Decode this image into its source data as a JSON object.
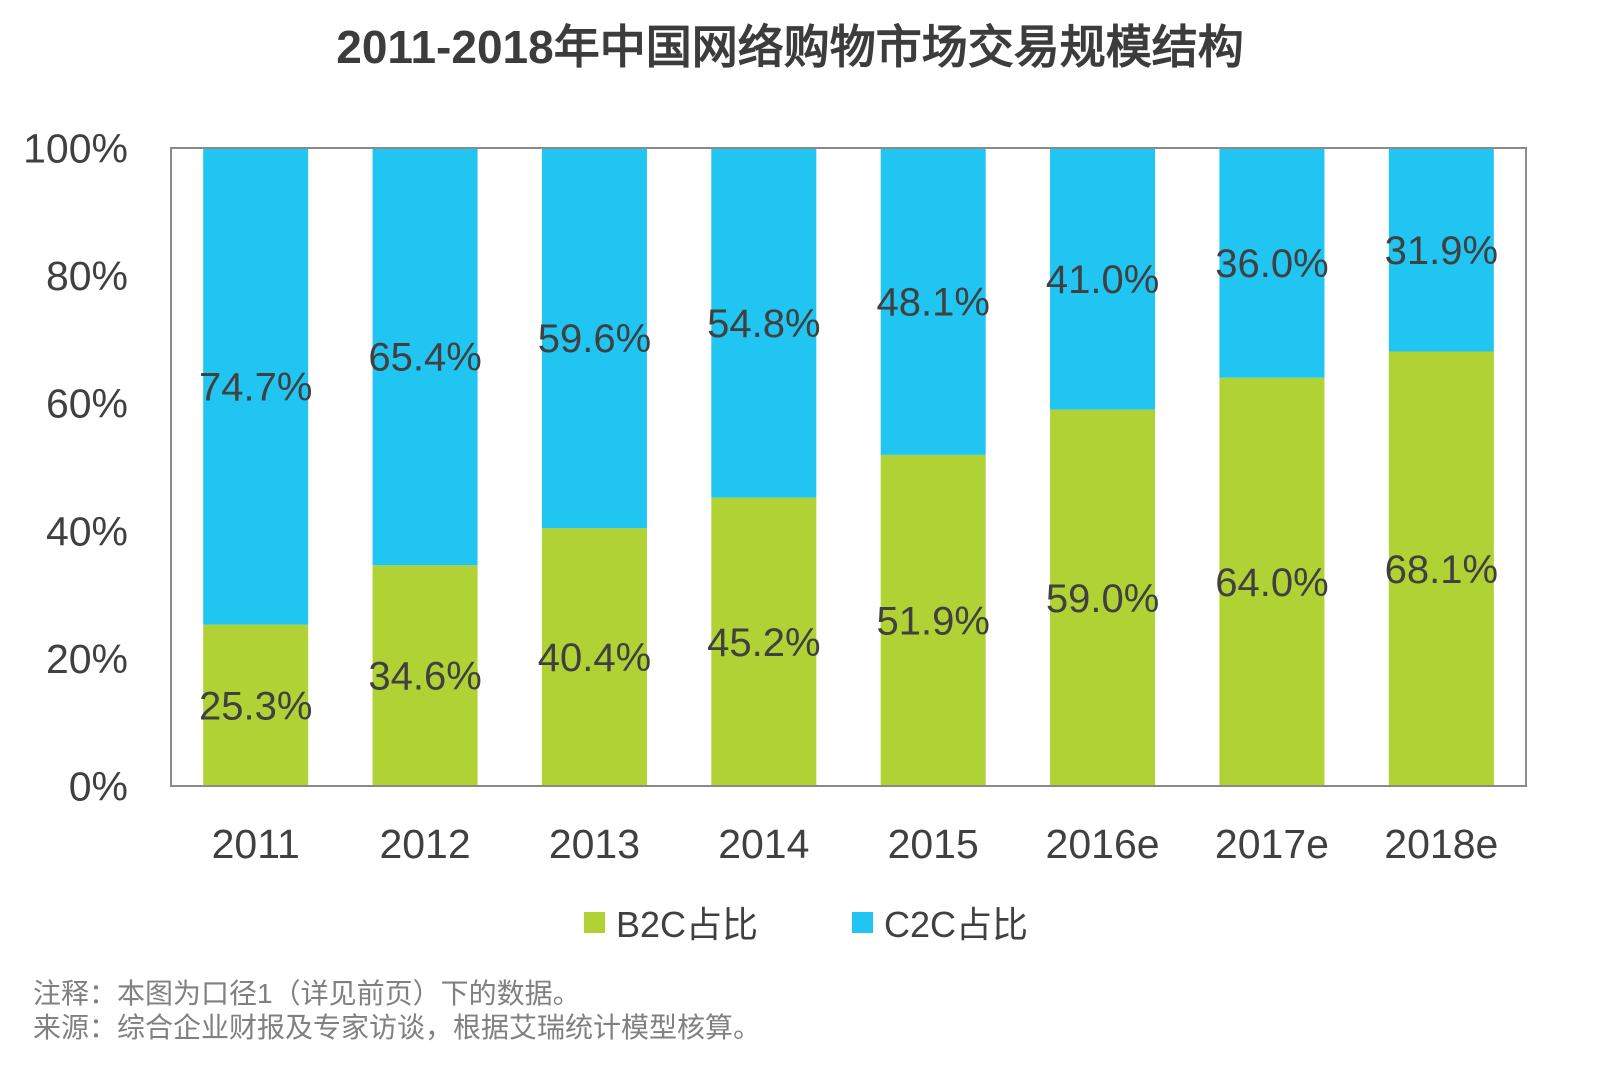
{
  "chart_data": {
    "type": "bar",
    "stacked": true,
    "title": "2011-2018年中国网络购物市场交易规模结构",
    "categories": [
      "2011",
      "2012",
      "2013",
      "2014",
      "2015",
      "2016e",
      "2017e",
      "2018e"
    ],
    "series": [
      {
        "name": "B2C占比",
        "color": "#B0D235",
        "values": [
          25.3,
          34.6,
          40.4,
          45.2,
          51.9,
          59.0,
          64.0,
          68.1
        ],
        "labels": [
          "25.3%",
          "34.6%",
          "40.4%",
          "45.2%",
          "51.9%",
          "59.0%",
          "64.0%",
          "68.1%"
        ]
      },
      {
        "name": "C2C占比",
        "color": "#20C5F1",
        "values": [
          74.7,
          65.4,
          59.6,
          54.8,
          48.1,
          41.0,
          36.0,
          31.9
        ],
        "labels": [
          "74.7%",
          "65.4%",
          "59.6%",
          "54.8%",
          "48.1%",
          "41.0%",
          "36.0%",
          "31.9%"
        ]
      }
    ],
    "yticks": [
      "0%",
      "20%",
      "40%",
      "60%",
      "80%",
      "100%"
    ],
    "ylim": [
      0,
      100
    ],
    "grid": false,
    "legend": "bottom"
  },
  "notes": {
    "note": "注释：本图为口径1（详见前页）下的数据。",
    "source": "来源：综合企业财报及专家访谈，根据艾瑞统计模型核算。"
  }
}
